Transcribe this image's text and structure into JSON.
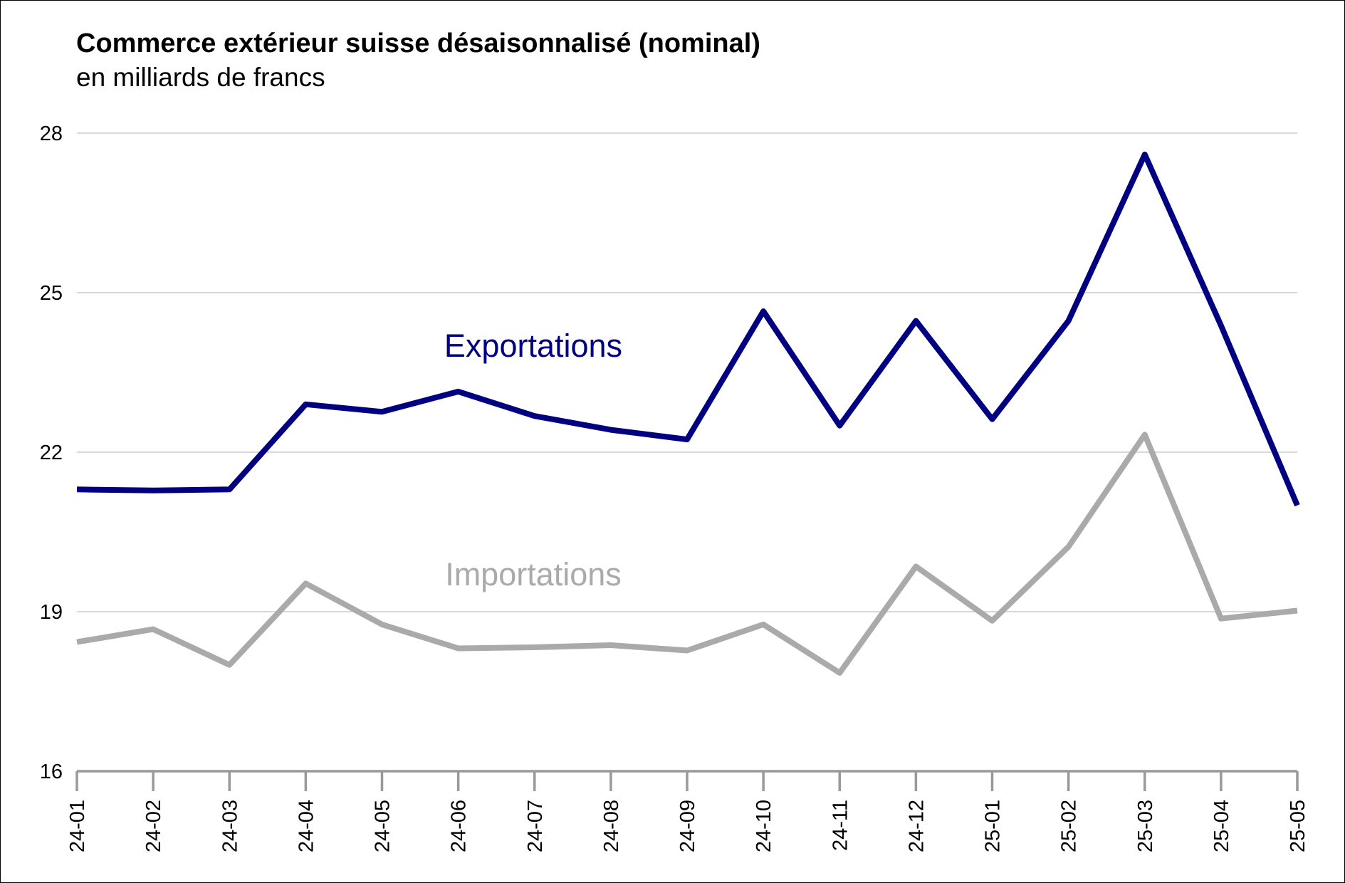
{
  "chart_data": {
    "type": "line",
    "title": "Commerce extérieur suisse désaisonnalisé (nominal)",
    "subtitle": "en milliards de francs",
    "xlabel": "",
    "ylabel": "",
    "categories": [
      "24-01",
      "24-02",
      "24-03",
      "24-04",
      "24-05",
      "24-06",
      "24-07",
      "24-08",
      "24-09",
      "24-10",
      "24-11",
      "24-12",
      "25-01",
      "25-02",
      "25-03",
      "25-04",
      "25-05"
    ],
    "ylim": [
      16,
      28
    ],
    "yticks": [
      "16",
      "19",
      "22",
      "25",
      "28"
    ],
    "grid": true,
    "series": [
      {
        "name": "Exportations",
        "color": "#000080",
        "values": [
          21.3,
          21.28,
          21.3,
          22.9,
          22.76,
          23.14,
          22.68,
          22.42,
          22.24,
          24.65,
          22.5,
          24.47,
          22.62,
          24.47,
          27.6,
          24.38,
          21.0
        ]
      },
      {
        "name": "Importations",
        "color": "#aaaaaa",
        "values": [
          18.43,
          18.67,
          18.0,
          19.53,
          18.76,
          18.31,
          18.33,
          18.37,
          18.27,
          18.76,
          17.85,
          19.85,
          18.83,
          20.22,
          22.33,
          18.87,
          19.02
        ]
      }
    ]
  }
}
